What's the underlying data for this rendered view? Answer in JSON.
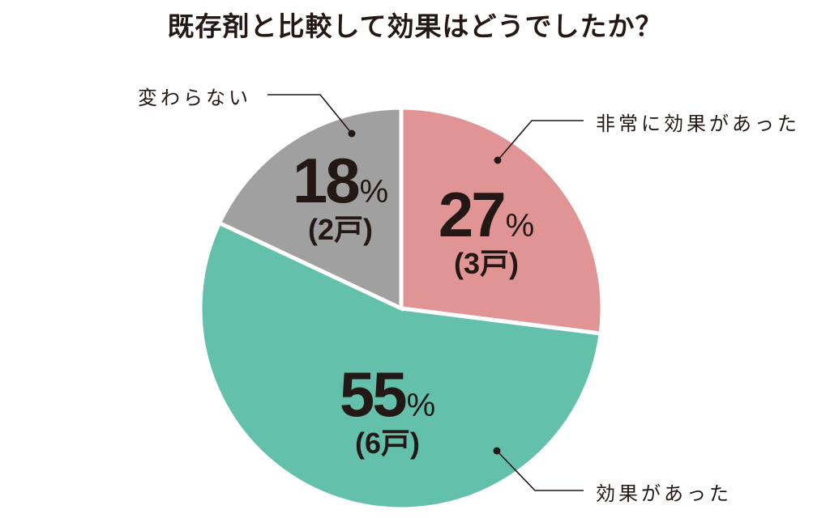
{
  "title": "既存剤と比較して効果はどうでしたか？",
  "slices": [
    {
      "label": "非常に効果があった",
      "percent": "27",
      "percent_symbol": "%",
      "count": "(3戸)",
      "color": "#e09594"
    },
    {
      "label": "効果があった",
      "percent": "55",
      "percent_symbol": "%",
      "count": "(6戸)",
      "color": "#63c1ab"
    },
    {
      "label": "変わらない",
      "percent": "18",
      "percent_symbol": "%",
      "count": "(2戸)",
      "color": "#9fa09f"
    }
  ],
  "chart_data": {
    "type": "pie",
    "title": "既存剤と比較して効果はどうでしたか？",
    "categories": [
      "非常に効果があった",
      "効果があった",
      "変わらない"
    ],
    "values": [
      27,
      55,
      18
    ],
    "counts": [
      3,
      6,
      2
    ],
    "unit": "%",
    "count_unit": "戸",
    "colors": [
      "#e09594",
      "#63c1ab",
      "#9fa09f"
    ],
    "start_angle": "12 o'clock",
    "direction": "clockwise",
    "legend": "leader-line callouts"
  }
}
